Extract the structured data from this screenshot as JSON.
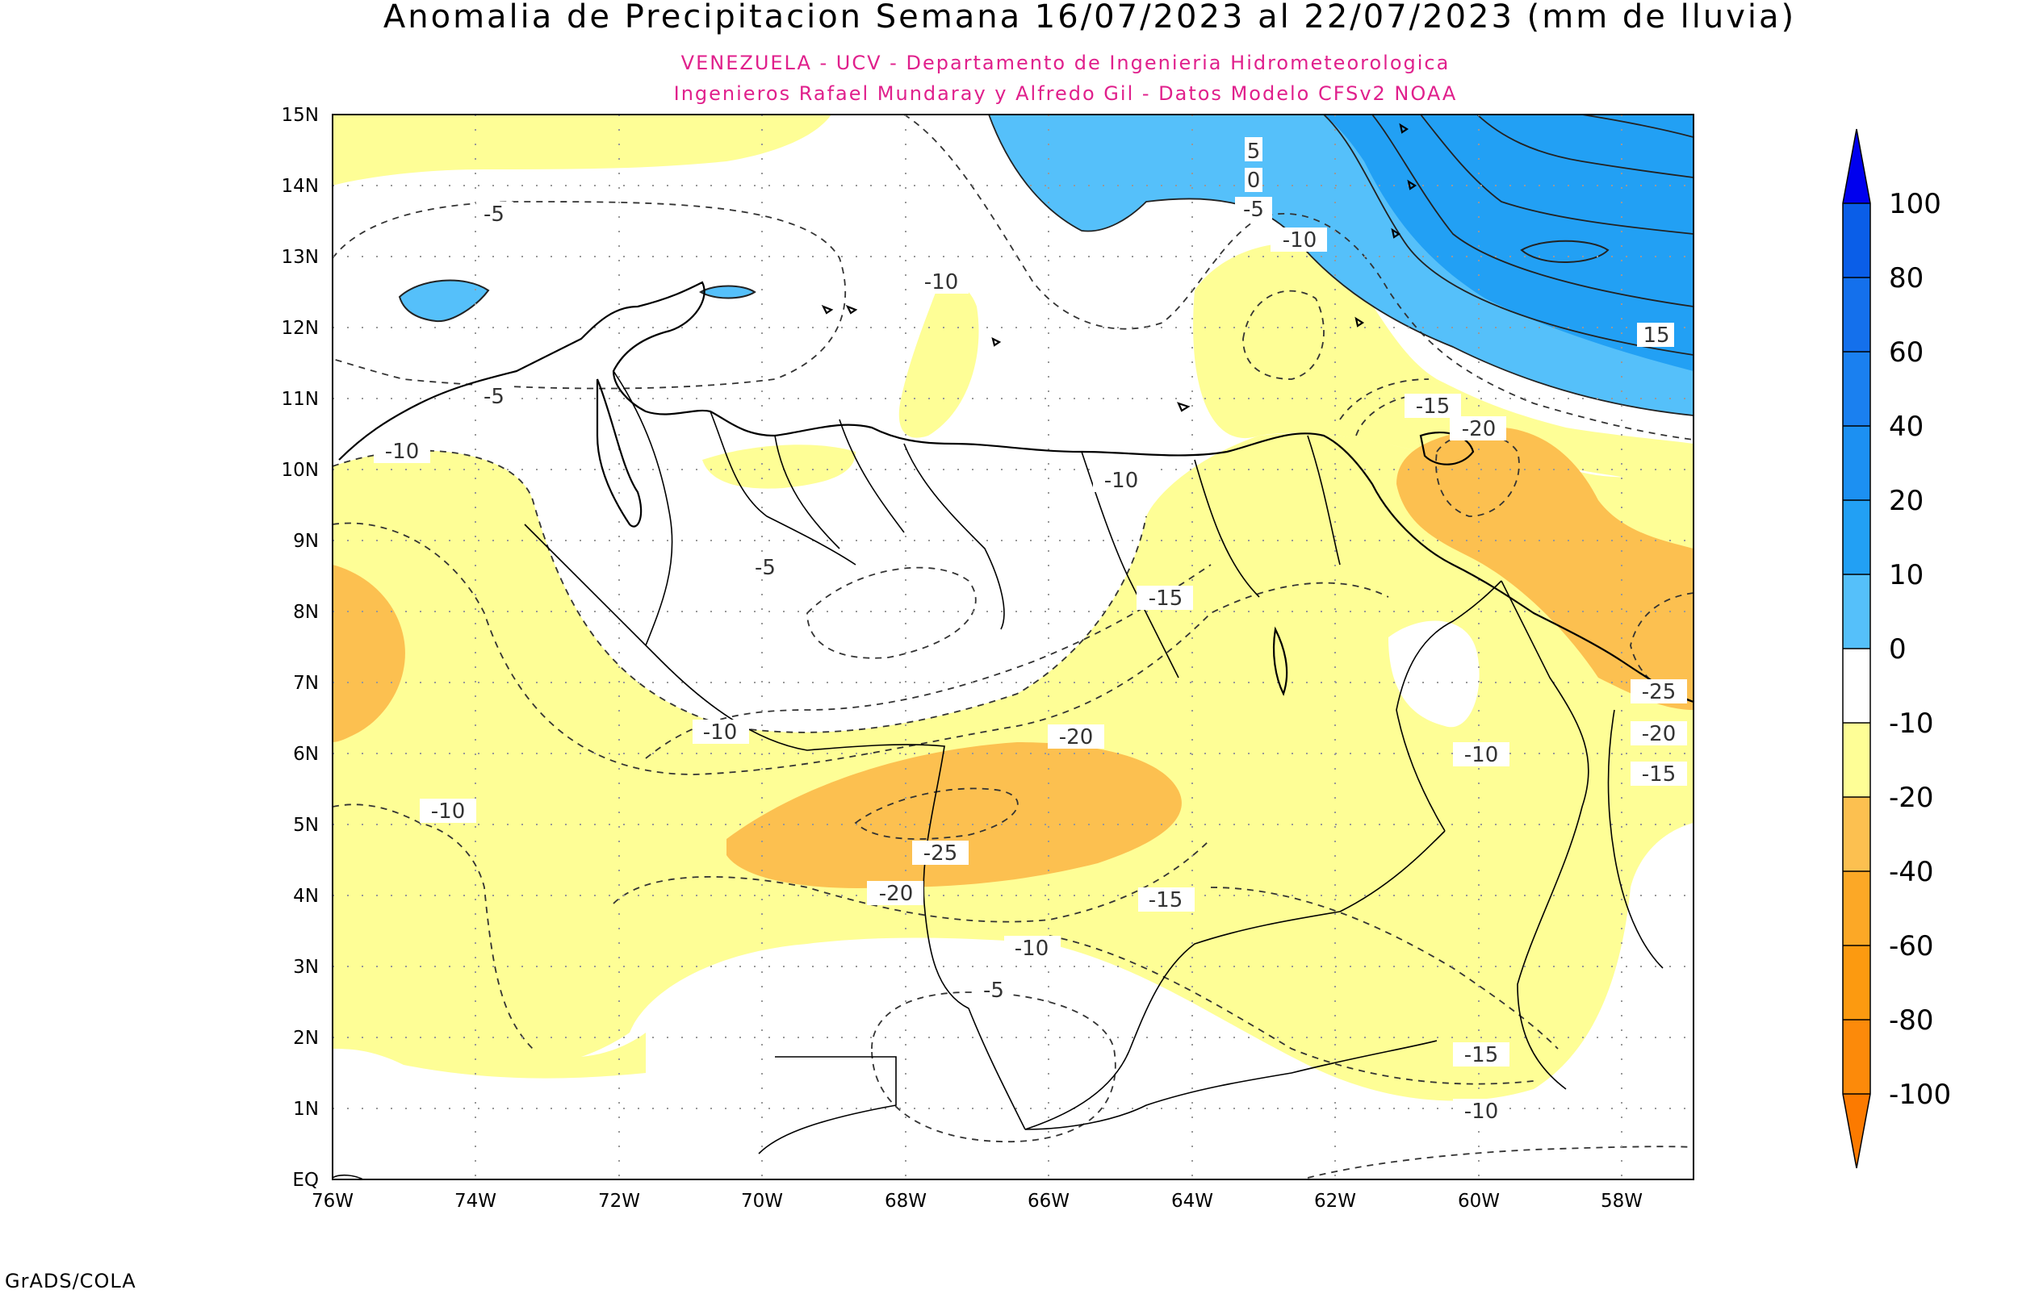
{
  "title": "Anomalia de Precipitacion Semana 16/07/2023 al 22/07/2023 (mm de lluvia)",
  "subtitle_line1": "VENEZUELA - UCV - Departamento de Ingenieria Hidrometeorologica",
  "subtitle_line2": "Ingenieros Rafael Mundaray y Alfredo Gil - Datos Modelo CFSv2 NOAA",
  "footer": "GrADS/COLA",
  "map": {
    "lat_labels": [
      "15N",
      "14N",
      "13N",
      "12N",
      "11N",
      "10N",
      "9N",
      "8N",
      "7N",
      "6N",
      "5N",
      "4N",
      "3N",
      "2N",
      "1N",
      "EQ"
    ],
    "lon_labels": [
      "76W",
      "74W",
      "72W",
      "70W",
      "68W",
      "66W",
      "64W",
      "62W",
      "60W",
      "58W"
    ],
    "lat_range": [
      0,
      15
    ],
    "lon_range": [
      -76,
      -57
    ],
    "grid": "dotted"
  },
  "contour_labels": {
    "c1": "5",
    "c2": "0",
    "c3": "-5",
    "c4": "-10",
    "c5": "15",
    "c6": "-5",
    "c7": "-10",
    "c8": "-5",
    "c9": "-10",
    "c10": "-15",
    "c11": "-20",
    "c12": "-10",
    "c13": "-15",
    "c14": "-5",
    "c15": "-10",
    "c16": "-20",
    "c17": "-25",
    "c18": "-20",
    "c19": "-10",
    "c20": "-10",
    "c21": "-15",
    "c22": "-10",
    "c23": "-5",
    "c24": "-25",
    "c25": "-20",
    "c26": "-15",
    "c27": "-15",
    "c28": "-10"
  },
  "colorbar": {
    "labels": [
      "100",
      "80",
      "60",
      "40",
      "20",
      "10",
      "0",
      "-10",
      "-20",
      "-40",
      "-60",
      "-80",
      "-100"
    ],
    "colors": [
      "#0a5ee8",
      "#1470ec",
      "#1a80f0",
      "#1c90f2",
      "#22a0f4",
      "#55c0fa",
      "#ffffff",
      "#fefe96",
      "#fcc050",
      "#fca826",
      "#fc9a10",
      "#fc8a0a"
    ],
    "top_arrow_color": "#0000ee",
    "bottom_arrow_color": "#fc7a00"
  },
  "fill_colors": {
    "yellow": "#fefe96",
    "orange": "#fcc050",
    "lightblue": "#55c0fa",
    "blue": "#22a0f4"
  }
}
